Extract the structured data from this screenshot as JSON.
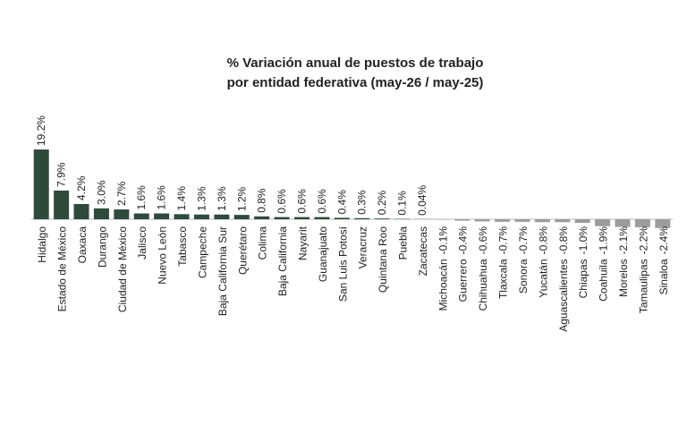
{
  "chart_data": {
    "type": "bar",
    "title": [
      "% Variación anual de puestos de trabajo",
      "por entidad federativa (may-26 / may-25)"
    ],
    "categories": [
      "Hidalgo",
      "Estado de México",
      "Oaxaca",
      "Durango",
      "Ciudad de México",
      "Jalisco",
      "Nuevo León",
      "Tabasco",
      "Campeche",
      "Baja California Sur",
      "Querétaro",
      "Colima",
      "Baja California",
      "Nayarit",
      "Guanajuato",
      "San Luis Potosí",
      "Veracruz",
      "Quintana Roo",
      "Puebla",
      "Zacatecas",
      "Michoacán",
      "Guerrero",
      "Chihuahua",
      "Tlaxcala",
      "Sonora",
      "Yucatán",
      "Aguascalientes",
      "Chiapas",
      "Coahuila",
      "Morelos",
      "Tamaulipas",
      "Sinaloa"
    ],
    "values": [
      19.2,
      7.9,
      4.2,
      3.0,
      2.7,
      1.6,
      1.6,
      1.4,
      1.3,
      1.3,
      1.2,
      0.8,
      0.6,
      0.6,
      0.6,
      0.4,
      0.3,
      0.2,
      0.1,
      0.04,
      -0.1,
      -0.4,
      -0.6,
      -0.7,
      -0.7,
      -0.8,
      -0.8,
      -1.0,
      -1.9,
      -2.1,
      -2.2,
      -2.4
    ],
    "value_labels": [
      "19.2%",
      "7.9%",
      "4.2%",
      "3.0%",
      "2.7%",
      "1.6%",
      "1.6%",
      "1.4%",
      "1.3%",
      "1.3%",
      "1.2%",
      "0.8%",
      "0.6%",
      "0.6%",
      "0.6%",
      "0.4%",
      "0.3%",
      "0.2%",
      "0.1%",
      "0.04%",
      "-0.1%",
      "-0.4%",
      "-0.6%",
      "-0.7%",
      "-0.7%",
      "-0.8%",
      "-0.8%",
      "-1.0%",
      "-1.9%",
      "-2.1%",
      "-2.2%",
      "-2.4%"
    ],
    "color": "#2e4a3b",
    "negative_color": "#9c9c9c"
  }
}
